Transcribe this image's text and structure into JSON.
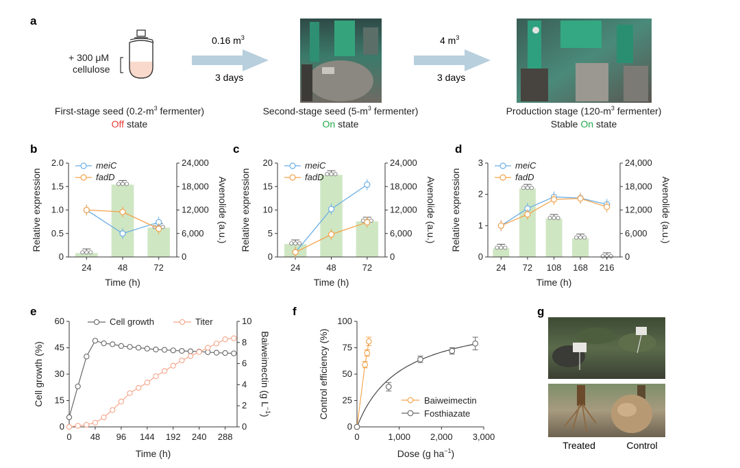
{
  "colors": {
    "blue": "#6aaee6",
    "orange": "#f3a24a",
    "green": "#cfe6c3",
    "greenText": "#22a84a",
    "red": "#e53935",
    "gray": "#666666",
    "titerPink": "#f4a58a",
    "arrow": "#b8cfdd"
  },
  "panel_a": {
    "letter": "a",
    "treatment_line1": "+ 300 μM",
    "treatment_line2": "cellulose",
    "arrow1_volume_num": "0.16 m",
    "arrow1_volume_sup": "3",
    "arrow1_days": "3 days",
    "arrow2_volume_num": "4 m",
    "arrow2_volume_sup": "3",
    "arrow2_days": "3 days",
    "stage1": {
      "title_pre": "First-stage seed (0.2-m",
      "title_sup": "3",
      "title_post": " fermenter)",
      "state_word": "Off",
      "state_rest": " state"
    },
    "stage2": {
      "title_pre": "Second-stage seed (5-m",
      "title_sup": "3",
      "title_post": " fermenter)",
      "state_word": "On",
      "state_rest": " state"
    },
    "stage3": {
      "title_pre": "Production stage (120-m",
      "title_sup": "3",
      "title_post": " fermenter)",
      "state_pre": "Stable ",
      "state_word": "On",
      "state_rest": " state"
    }
  },
  "chart_data": [
    {
      "panel": "b",
      "type": "bar+line",
      "categories": [
        "24",
        "48",
        "72"
      ],
      "bar_series": {
        "name": "Avenolide",
        "values": [
          1000,
          18500,
          7500
        ],
        "ylim": [
          0,
          24000
        ]
      },
      "series": [
        {
          "name": "meiC",
          "values": [
            1.0,
            0.5,
            0.74
          ]
        },
        {
          "name": "fadD",
          "values": [
            1.0,
            0.96,
            0.6
          ]
        }
      ],
      "ylim": [
        0,
        2.0
      ],
      "yticks": [
        "0",
        "0.5",
        "1.0",
        "1.5",
        "2.0"
      ],
      "y2ticks": [
        "0",
        "6,000",
        "12,000",
        "18,000",
        "24,000"
      ],
      "xlabel": "Time (h)",
      "ylabel": "Relative expression",
      "y2label": "Avenolide (a.u.)"
    },
    {
      "panel": "c",
      "type": "bar+line",
      "categories": [
        "24",
        "48",
        "72"
      ],
      "bar_series": {
        "name": "Avenolide",
        "values": [
          3300,
          21000,
          9100
        ],
        "ylim": [
          0,
          24000
        ]
      },
      "series": [
        {
          "name": "meiC",
          "values": [
            1.0,
            10.2,
            15.4
          ]
        },
        {
          "name": "fadD",
          "values": [
            1.0,
            4.8,
            7.4
          ]
        }
      ],
      "ylim": [
        0,
        20
      ],
      "yticks": [
        "0",
        "5",
        "10",
        "15",
        "20"
      ],
      "y2ticks": [
        "0",
        "6,000",
        "12,000",
        "18,000",
        "24,000"
      ],
      "xlabel": "Time (h)",
      "ylabel": "Relative expression",
      "y2label": "Avenolide (a.u.)"
    },
    {
      "panel": "d",
      "type": "bar+line",
      "categories": [
        "24",
        "72",
        "108",
        "168",
        "216"
      ],
      "bar_series": {
        "name": "Avenolide",
        "values": [
          2200,
          17500,
          9800,
          4800,
          0
        ],
        "ylim": [
          0,
          24000
        ]
      },
      "series": [
        {
          "name": "meiC",
          "values": [
            1.0,
            1.55,
            1.92,
            1.88,
            1.68
          ]
        },
        {
          "name": "fadD",
          "values": [
            1.0,
            1.36,
            1.84,
            1.87,
            1.6
          ]
        }
      ],
      "ylim": [
        0,
        3
      ],
      "yticks": [
        "0",
        "1",
        "2",
        "3"
      ],
      "y2ticks": [
        "0",
        "6,000",
        "12,000",
        "18,000",
        "24,000"
      ],
      "xlabel": "Time (h)",
      "ylabel": "Relative expression",
      "y2label": "Avenolide (a.u.)"
    },
    {
      "panel": "e",
      "type": "line",
      "series": [
        {
          "name": "Cell growth",
          "axis": "left",
          "x": [
            0,
            16,
            32,
            48,
            64,
            80,
            96,
            112,
            128,
            144,
            160,
            176,
            192,
            208,
            224,
            240,
            256,
            272,
            288,
            304
          ],
          "values": [
            5.5,
            23,
            40,
            49,
            47.5,
            47,
            46,
            45.5,
            45,
            44.5,
            44,
            43.8,
            43.5,
            43.2,
            43,
            42.8,
            42.5,
            42.2,
            42,
            41.8
          ]
        },
        {
          "name": "Titer",
          "axis": "right",
          "x": [
            0,
            16,
            32,
            48,
            64,
            80,
            96,
            112,
            128,
            144,
            160,
            176,
            192,
            208,
            224,
            240,
            256,
            272,
            288,
            304
          ],
          "values": [
            0,
            0.1,
            0.2,
            0.4,
            0.9,
            1.6,
            2.4,
            3.2,
            3.7,
            4.2,
            4.8,
            5.3,
            5.8,
            6.3,
            6.7,
            7.1,
            7.5,
            7.9,
            8.3,
            8.4
          ]
        }
      ],
      "xlim": [
        0,
        310
      ],
      "ylim": [
        0,
        60
      ],
      "y2lim": [
        0,
        10
      ],
      "xticks": [
        "0",
        "48",
        "96",
        "144",
        "192",
        "240",
        "288"
      ],
      "yticks": [
        "0",
        "15",
        "30",
        "45",
        "60"
      ],
      "y2ticks": [
        "0",
        "2",
        "4",
        "6",
        "8",
        "10"
      ],
      "xlabel": "Time (h)",
      "ylabel": "Cell growth (%)",
      "y2label_pre": "Baiweimectin (g L",
      "y2label_sup": "−1",
      "y2label_post": ")"
    },
    {
      "panel": "f",
      "type": "scatter+fit",
      "series": [
        {
          "name": "Baiweimectin",
          "x": [
            0,
            190,
            240,
            280
          ],
          "values": [
            0,
            59,
            70,
            81
          ],
          "err": [
            0,
            3,
            3,
            4
          ]
        },
        {
          "name": "Fosthiazate",
          "x": [
            0,
            750,
            1500,
            2250,
            2800
          ],
          "values": [
            0,
            38,
            64,
            72,
            79
          ],
          "err": [
            0,
            4,
            3,
            3,
            6
          ]
        }
      ],
      "xlim": [
        0,
        3000
      ],
      "ylim": [
        0,
        100
      ],
      "xticks": [
        "0",
        "1,000",
        "2,000",
        "3,000"
      ],
      "yticks": [
        "0",
        "25",
        "50",
        "75",
        "100"
      ],
      "xlabel_pre": "Dose (g ha",
      "xlabel_sup": "−1",
      "xlabel_post": ")",
      "ylabel": "Control efficiency (%)"
    }
  ],
  "panel_labels": {
    "b": "b",
    "c": "c",
    "d": "d",
    "e": "e",
    "f": "f",
    "g": "g"
  },
  "panel_g": {
    "left_label": "Treated",
    "right_label": "Control"
  }
}
